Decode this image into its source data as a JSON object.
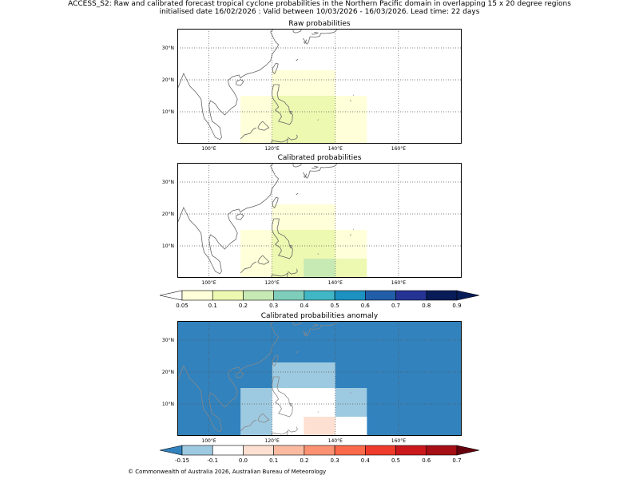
{
  "header": {
    "line1": "ACCESS_S2: Raw and calibrated forecast tropical cyclone probabilities in the Northern Pacific domain in overlapping 15 x 20 degree regions",
    "line2": "initialised date 16/02/2026 :  Valid between 10/03/2026 - 16/03/2026. Lead time: 22 days"
  },
  "footer": "© Commonwealth of Australia 2026, Australian Bureau of Meteorology",
  "colors": {
    "prob_scale": [
      "#ffffd9",
      "#edf8b1",
      "#c7e9b4",
      "#7fcdbb",
      "#41b6c4",
      "#1d91c0",
      "#225ea8",
      "#253494",
      "#081d58"
    ],
    "prob_under": "#ffffff",
    "prob_over": "#081d58",
    "anom_scale": [
      "#9ecae1",
      "#ffffff",
      "#fee0d2",
      "#fcbba1",
      "#fc9272",
      "#fb6a4a",
      "#ef3b2c",
      "#cb181d",
      "#a50f15"
    ],
    "anom_under": "#3182bd",
    "anom_over": "#67000d",
    "coast": "#666666",
    "grid": "#555555"
  },
  "chart_data": [
    {
      "type": "heatmap",
      "title": "Raw probabilities",
      "xlim": [
        90,
        180
      ],
      "ylim": [
        0,
        36
      ],
      "xticks": [
        100,
        120,
        140,
        160
      ],
      "xtick_labels": [
        "100°E",
        "120°E",
        "140°E",
        "160°E"
      ],
      "yticks": [
        10,
        20,
        30
      ],
      "ytick_labels": [
        "10°N",
        "20°N",
        "30°N"
      ],
      "background": "#ffffff",
      "cells": [
        {
          "lon": [
            110,
            150
          ],
          "lat": [
            0,
            15
          ],
          "value": 0.07,
          "color": "#ffffd9"
        },
        {
          "lon": [
            120,
            140
          ],
          "lat": [
            0,
            15
          ],
          "value": 0.12,
          "color": "#edf8b1"
        },
        {
          "lon": [
            120,
            140
          ],
          "lat": [
            15,
            23
          ],
          "value": 0.07,
          "color": "#ffffd9"
        }
      ]
    },
    {
      "type": "heatmap",
      "title": "Calibrated probabilities",
      "xlim": [
        90,
        180
      ],
      "ylim": [
        0,
        36
      ],
      "xticks": [
        100,
        120,
        140,
        160
      ],
      "xtick_labels": [
        "100°E",
        "120°E",
        "140°E",
        "160°E"
      ],
      "yticks": [
        10,
        20,
        30
      ],
      "ytick_labels": [
        "10°N",
        "20°N",
        "30°N"
      ],
      "background": "#ffffff",
      "cells": [
        {
          "lon": [
            110,
            150
          ],
          "lat": [
            0,
            15
          ],
          "value": 0.07,
          "color": "#ffffd9"
        },
        {
          "lon": [
            120,
            140
          ],
          "lat": [
            0,
            15
          ],
          "value": 0.12,
          "color": "#edf8b1"
        },
        {
          "lon": [
            140,
            150
          ],
          "lat": [
            0,
            6
          ],
          "value": 0.12,
          "color": "#edf8b1"
        },
        {
          "lon": [
            130,
            140
          ],
          "lat": [
            0,
            6
          ],
          "value": 0.22,
          "color": "#c7e9b4"
        },
        {
          "lon": [
            120,
            140
          ],
          "lat": [
            15,
            23
          ],
          "value": 0.07,
          "color": "#ffffd9"
        }
      ]
    },
    {
      "type": "heatmap",
      "title": "Calibrated probabilities anomaly",
      "xlim": [
        90,
        180
      ],
      "ylim": [
        0,
        36
      ],
      "xticks": [
        100,
        120,
        140,
        160
      ],
      "xtick_labels": [
        "100°E",
        "120°E",
        "140°E",
        "160°E"
      ],
      "yticks": [
        10,
        20,
        30
      ],
      "ytick_labels": [
        "10°N",
        "20°N",
        "30°N"
      ],
      "background": "#3182bd",
      "cells": [
        {
          "lon": [
            110,
            150
          ],
          "lat": [
            0,
            15
          ],
          "value": -0.12,
          "color": "#9ecae1"
        },
        {
          "lon": [
            120,
            140
          ],
          "lat": [
            0,
            15
          ],
          "value": -0.02,
          "color": "#ffffff"
        },
        {
          "lon": [
            140,
            150
          ],
          "lat": [
            0,
            6
          ],
          "value": -0.02,
          "color": "#ffffff"
        },
        {
          "lon": [
            130,
            140
          ],
          "lat": [
            0,
            6
          ],
          "value": 0.05,
          "color": "#fee0d2"
        },
        {
          "lon": [
            120,
            140
          ],
          "lat": [
            15,
            23
          ],
          "value": -0.12,
          "color": "#9ecae1"
        }
      ]
    }
  ],
  "colorbars": [
    {
      "label_values": [
        "0.05",
        "0.1",
        "0.2",
        "0.3",
        "0.4",
        "0.5",
        "0.6",
        "0.7",
        "0.8",
        "0.9"
      ]
    },
    {
      "label_values": [
        "-0.15",
        "-0.1",
        "0.0",
        "0.1",
        "0.2",
        "0.3",
        "0.4",
        "0.5",
        "0.6",
        "0.7"
      ]
    }
  ]
}
